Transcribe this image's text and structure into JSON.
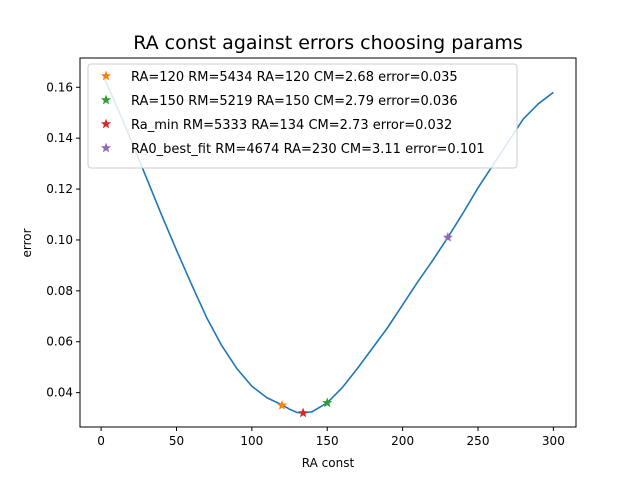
{
  "chart_data": {
    "type": "line",
    "title": "RA const against errors choosing params",
    "xlabel": "RA const",
    "ylabel": "error",
    "xlim": [
      -14,
      315
    ],
    "ylim": [
      0.0265,
      0.1715
    ],
    "xticks": [
      0,
      50,
      100,
      150,
      200,
      250,
      300
    ],
    "xtick_labels": [
      "0",
      "50",
      "100",
      "150",
      "200",
      "250",
      "300"
    ],
    "yticks": [
      0.04,
      0.06,
      0.08,
      0.1,
      0.12,
      0.14,
      0.16
    ],
    "ytick_labels": [
      "0.04",
      "0.06",
      "0.08",
      "0.10",
      "0.12",
      "0.14",
      "0.16"
    ],
    "grid": false,
    "legend_position": "upper-left",
    "series": [
      {
        "color": "#1f77b4",
        "style": "line",
        "x": [
          1,
          10,
          20,
          30,
          40,
          50,
          60,
          70,
          80,
          90,
          100,
          110,
          120,
          125,
          130,
          134,
          140,
          150,
          160,
          170,
          180,
          190,
          200,
          210,
          220,
          230,
          240,
          250,
          260,
          270,
          280,
          290,
          300
        ],
        "y": [
          0.165,
          0.153,
          0.139,
          0.1245,
          0.11,
          0.096,
          0.0825,
          0.0695,
          0.0585,
          0.0495,
          0.0425,
          0.038,
          0.0352,
          0.0335,
          0.0322,
          0.032,
          0.0325,
          0.036,
          0.042,
          0.0495,
          0.0575,
          0.0655,
          0.0745,
          0.0835,
          0.092,
          0.101,
          0.1105,
          0.1205,
          0.1295,
          0.1385,
          0.1475,
          0.1535,
          0.158
        ]
      },
      {
        "name": "RA=120 RM=5434 RA=120 CM=2.68 error=0.035",
        "color": "#ff7f0e",
        "style": "star",
        "x": [
          120
        ],
        "y": [
          0.035
        ]
      },
      {
        "name": "RA=150 RM=5219 RA=150 CM=2.79 error=0.036",
        "color": "#2ca02c",
        "style": "star",
        "x": [
          150
        ],
        "y": [
          0.036
        ]
      },
      {
        "name": "Ra_min RM=5333 RA=134 CM=2.73 error=0.032",
        "color": "#d62728",
        "style": "star",
        "x": [
          134
        ],
        "y": [
          0.032
        ]
      },
      {
        "name": "RA0_best_fit RM=4674 RA=230 CM=3.11 error=0.101",
        "color": "#9467bd",
        "style": "star",
        "x": [
          230
        ],
        "y": [
          0.101
        ]
      }
    ]
  }
}
